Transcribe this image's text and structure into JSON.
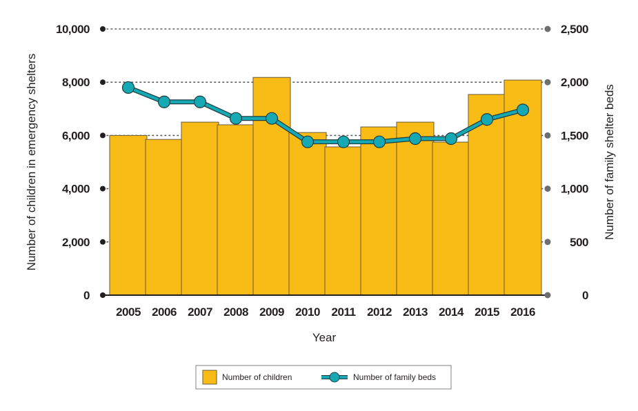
{
  "chart_data": {
    "type": "bar+line",
    "title": "",
    "categories": [
      "2005",
      "2006",
      "2007",
      "2008",
      "2009",
      "2010",
      "2011",
      "2012",
      "2013",
      "2014",
      "2015",
      "2016"
    ],
    "xlabel": "Year",
    "ylabel_left": "Number of children in emergency shelters",
    "ylabel_right": "Number of family shelter beds",
    "ylim_left": [
      0,
      10000
    ],
    "ylim_right": [
      0,
      2500
    ],
    "yticks_left": [
      "0",
      "2,000",
      "4,000",
      "6,000",
      "8,000",
      "10,000"
    ],
    "yticks_left_values": [
      0,
      2000,
      4000,
      6000,
      8000,
      10000
    ],
    "yticks_right": [
      "0",
      "500",
      "1,000",
      "1,500",
      "2,000",
      "2,500"
    ],
    "yticks_right_values": [
      0,
      500,
      1000,
      1500,
      2000,
      2500
    ],
    "grid": "horizontal dotted",
    "legend_position": "bottom-center",
    "series": [
      {
        "name": "Number of children",
        "type": "bar",
        "axis": "left",
        "color": "#f9bb16",
        "values": [
          6000,
          5850,
          6500,
          6400,
          8180,
          6110,
          5570,
          6320,
          6500,
          5750,
          7540,
          8080
        ]
      },
      {
        "name": "Number of family beds",
        "type": "line",
        "axis": "right",
        "color": "#17a9b3",
        "values": [
          1950,
          1815,
          1815,
          1660,
          1660,
          1440,
          1440,
          1440,
          1470,
          1470,
          1650,
          1740
        ]
      }
    ]
  },
  "colors": {
    "bar_fill": "#f9bb16",
    "bar_stroke": "#6b5a3a",
    "line": "#17a9b3",
    "line_outline": "#1f3d40",
    "left_axis_dot": "#231f20",
    "right_axis_dot": "#6d6e71",
    "grid": "#58595b"
  }
}
